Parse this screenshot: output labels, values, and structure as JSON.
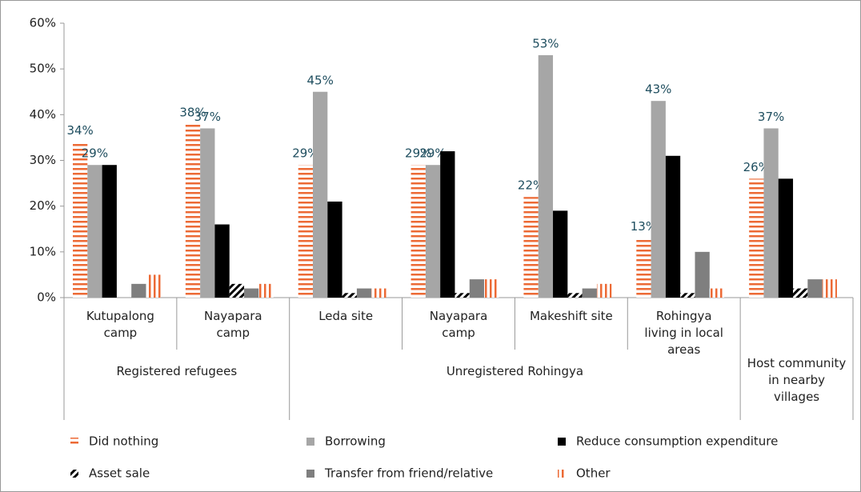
{
  "chart_data": {
    "type": "bar",
    "categories": [
      "Kutupalong camp",
      "Nayapara camp",
      "Leda site",
      "Nayapara camp",
      "Makeshift site",
      "Rohingya living in local areas",
      null
    ],
    "groups": [
      {
        "name": "Registered refugees",
        "span": 2
      },
      {
        "name": "Unregistered Rohingya",
        "span": 4
      },
      {
        "name": "Host community in nearby villages",
        "span": 1
      }
    ],
    "series": [
      {
        "name": "Did nothing",
        "color": "#ec6a35",
        "pattern": "horizontal",
        "values": [
          34,
          38,
          29,
          29,
          22,
          13,
          26
        ],
        "value_labels": [
          "34%",
          "38%",
          "29%",
          "29%",
          "22%",
          "13%",
          "26%"
        ]
      },
      {
        "name": "Borrowing",
        "color": "#a6a6a6",
        "pattern": "solid",
        "values": [
          29,
          37,
          45,
          29,
          53,
          43,
          37
        ],
        "value_labels": [
          "29%",
          "37%",
          "45%",
          "29%",
          "53%",
          "43%",
          "37%"
        ]
      },
      {
        "name": "Reduce consumption expenditure",
        "color": "#000000",
        "pattern": "solid",
        "values": [
          29,
          16,
          21,
          32,
          19,
          31,
          26
        ]
      },
      {
        "name": "Asset sale",
        "color": "#000000",
        "pattern": "diagonal",
        "values": [
          0,
          3,
          1,
          1,
          1,
          1,
          2
        ]
      },
      {
        "name": "Transfer from friend/relative",
        "color": "#7f7f7f",
        "pattern": "solid",
        "values": [
          3,
          2,
          2,
          4,
          2,
          10,
          4
        ]
      },
      {
        "name": "Other",
        "color": "#ec6a35",
        "pattern": "vertical",
        "values": [
          5,
          3,
          2,
          4,
          3,
          2,
          4
        ]
      }
    ],
    "ylim": [
      0,
      60
    ],
    "yticks": [
      {
        "value": 0,
        "label": "0%"
      },
      {
        "value": 10,
        "label": "10%"
      },
      {
        "value": 20,
        "label": "20%"
      },
      {
        "value": 30,
        "label": "30%"
      },
      {
        "value": 40,
        "label": "40%"
      },
      {
        "value": 50,
        "label": "50%"
      },
      {
        "value": 60,
        "label": "60%"
      }
    ],
    "grid": false
  }
}
